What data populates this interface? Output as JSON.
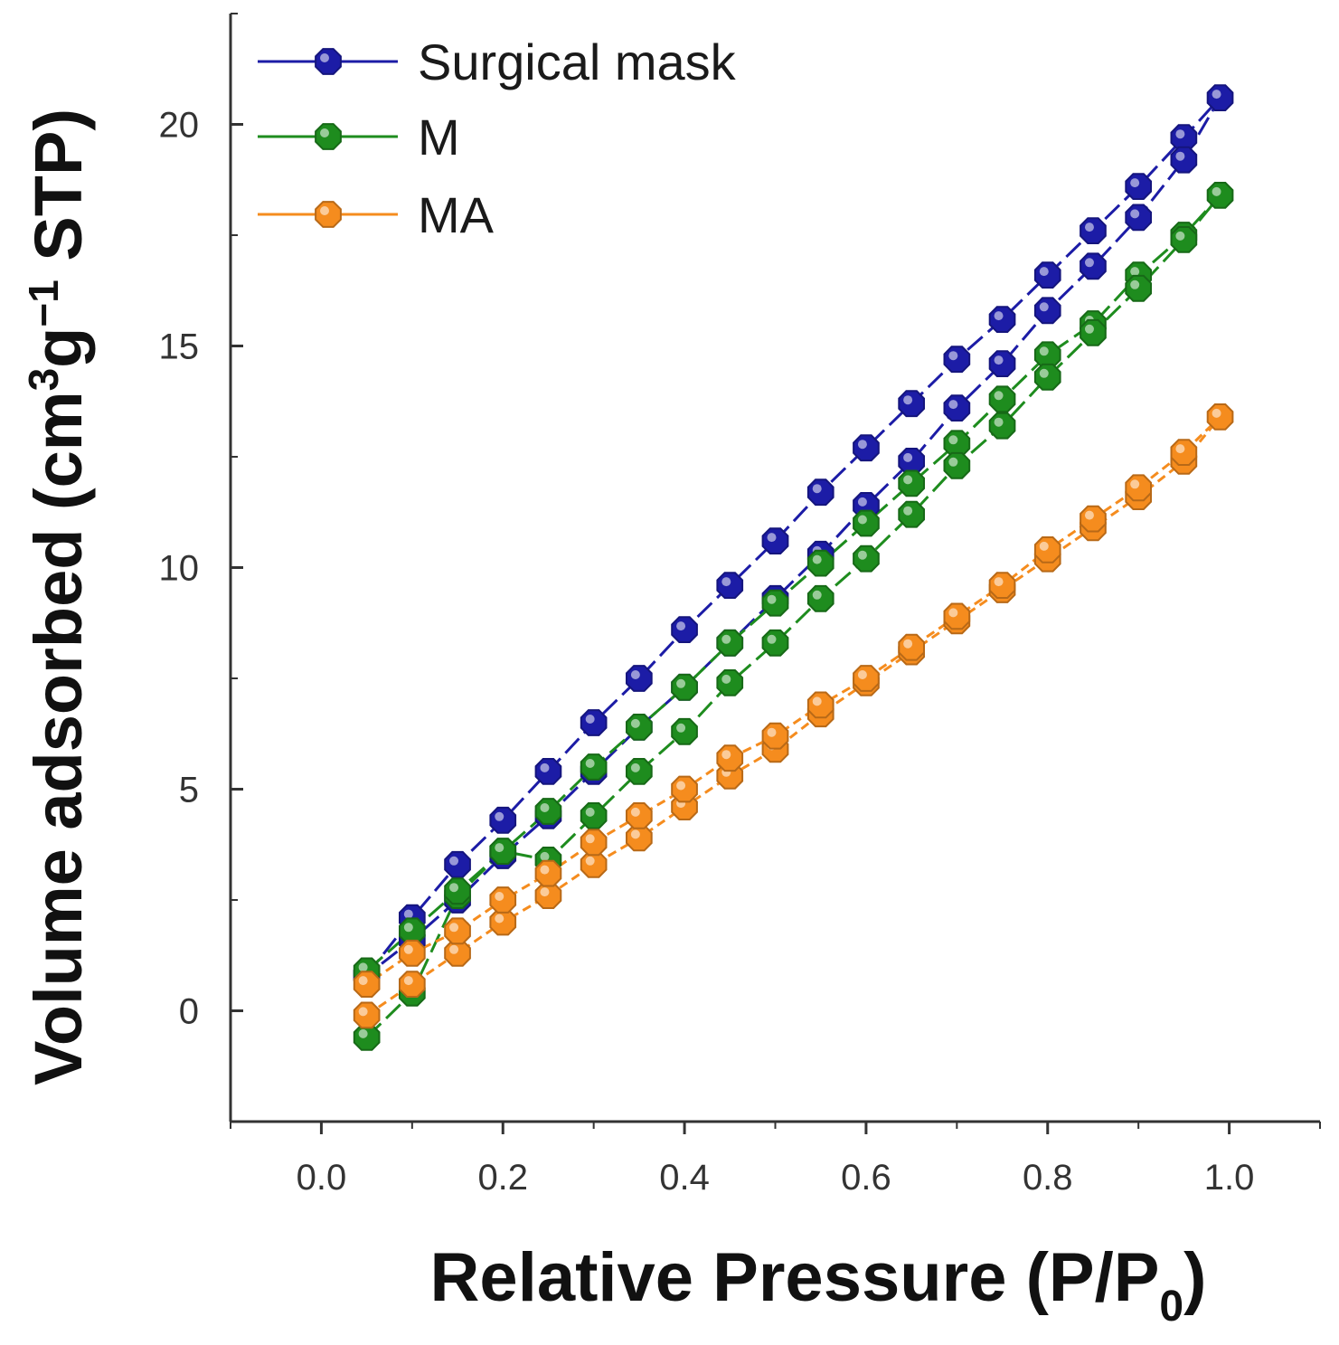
{
  "chart_data": {
    "type": "line",
    "title": "",
    "xlabel": "Relative Pressure (P/P",
    "xlabel_sub": "0",
    "xlabel_close": ")",
    "ylabel": "Volume adsorbed (cm",
    "ylabel_sup1": "3",
    "ylabel_mid": "g",
    "ylabel_sup2": "−1",
    "ylabel_end": " STP)",
    "xlim": [
      -0.1,
      1.1
    ],
    "ylim": [
      -2.5,
      22.5
    ],
    "xticks": [
      0.0,
      0.2,
      0.4,
      0.6,
      0.8,
      1.0
    ],
    "xtick_labels": [
      "0.0",
      "0.2",
      "0.4",
      "0.6",
      "0.8",
      "1.0"
    ],
    "yticks": [
      0,
      5,
      10,
      15,
      20
    ],
    "ytick_labels": [
      "0",
      "5",
      "10",
      "15",
      "20"
    ],
    "legend_position": "top-left",
    "series": [
      {
        "name": "Surgical mask",
        "color": "#1c1ca6",
        "x": [
          0.05,
          0.1,
          0.15,
          0.2,
          0.25,
          0.3,
          0.35,
          0.4,
          0.45,
          0.5,
          0.55,
          0.6,
          0.65,
          0.7,
          0.75,
          0.8,
          0.85,
          0.9,
          0.95,
          0.99,
          0.95,
          0.9,
          0.85,
          0.8,
          0.75,
          0.7,
          0.65,
          0.6,
          0.55,
          0.5,
          0.45,
          0.4,
          0.35,
          0.3,
          0.25,
          0.2,
          0.15,
          0.1,
          0.05
        ],
        "y": [
          0.8,
          2.1,
          3.3,
          4.3,
          5.4,
          6.5,
          7.5,
          8.6,
          9.6,
          10.6,
          11.7,
          12.7,
          13.7,
          14.7,
          15.6,
          16.6,
          17.6,
          18.6,
          19.7,
          20.6,
          19.2,
          17.9,
          16.8,
          15.8,
          14.6,
          13.6,
          12.4,
          11.4,
          10.3,
          9.3,
          8.3,
          7.3,
          6.4,
          5.4,
          4.4,
          3.5,
          2.5,
          1.6,
          0.8
        ]
      },
      {
        "name": "M",
        "color": "#1e8c1e",
        "x": [
          0.05,
          0.1,
          0.15,
          0.2,
          0.25,
          0.3,
          0.35,
          0.4,
          0.45,
          0.5,
          0.55,
          0.6,
          0.65,
          0.7,
          0.75,
          0.8,
          0.85,
          0.9,
          0.95,
          0.99,
          0.95,
          0.9,
          0.85,
          0.8,
          0.75,
          0.7,
          0.65,
          0.6,
          0.55,
          0.5,
          0.45,
          0.4,
          0.35,
          0.3,
          0.25,
          0.2,
          0.15,
          0.1,
          0.05
        ],
        "y": [
          -0.6,
          0.4,
          2.6,
          3.6,
          4.5,
          5.5,
          6.4,
          7.3,
          8.3,
          9.2,
          10.1,
          11.0,
          11.9,
          12.8,
          13.8,
          14.8,
          15.5,
          16.6,
          17.5,
          18.4,
          17.4,
          16.3,
          15.3,
          14.3,
          13.2,
          12.3,
          11.2,
          10.2,
          9.3,
          8.3,
          7.4,
          6.3,
          5.4,
          4.4,
          3.4,
          3.6,
          2.7,
          1.8,
          0.9
        ]
      },
      {
        "name": "MA",
        "color": "#f58c1e",
        "x": [
          0.05,
          0.1,
          0.15,
          0.2,
          0.25,
          0.3,
          0.35,
          0.4,
          0.45,
          0.5,
          0.55,
          0.6,
          0.65,
          0.7,
          0.75,
          0.8,
          0.85,
          0.9,
          0.95,
          0.99,
          0.95,
          0.9,
          0.85,
          0.8,
          0.75,
          0.7,
          0.65,
          0.6,
          0.55,
          0.5,
          0.45,
          0.4,
          0.35,
          0.3,
          0.25,
          0.2,
          0.15,
          0.1,
          0.05
        ],
        "y": [
          -0.1,
          0.6,
          1.3,
          2.0,
          2.6,
          3.3,
          3.9,
          4.6,
          5.3,
          5.9,
          6.7,
          7.4,
          8.1,
          8.8,
          9.5,
          10.2,
          10.9,
          11.6,
          12.4,
          13.4,
          12.6,
          11.8,
          11.1,
          10.4,
          9.6,
          8.9,
          8.2,
          7.5,
          6.9,
          6.2,
          5.7,
          5.0,
          4.4,
          3.8,
          3.1,
          2.5,
          1.8,
          1.3,
          0.6
        ]
      }
    ]
  }
}
